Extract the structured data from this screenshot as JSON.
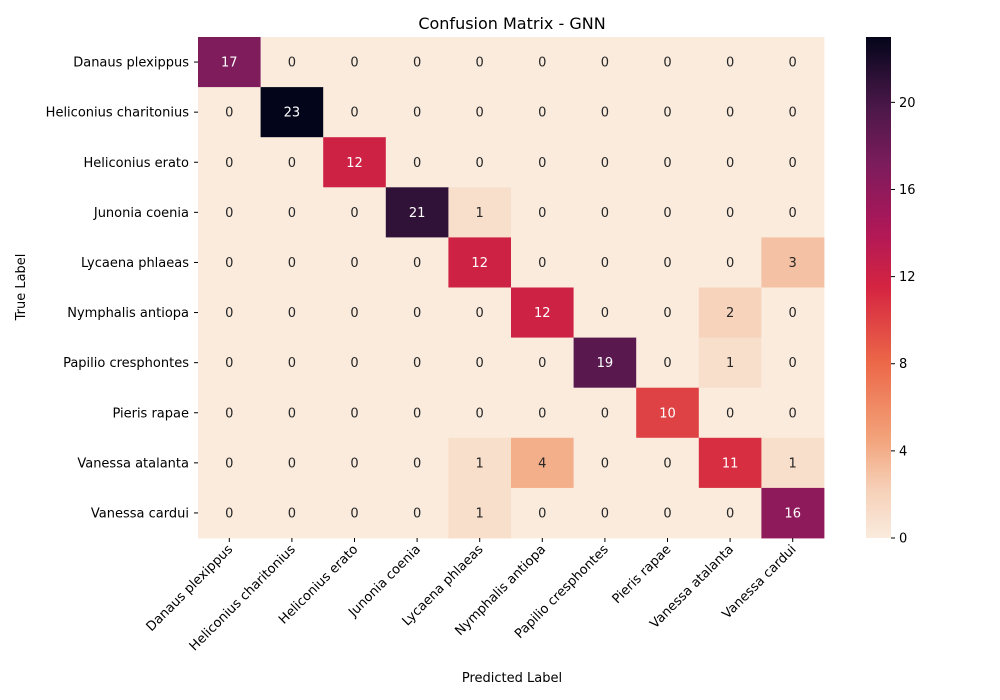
{
  "chart_data": {
    "type": "heatmap",
    "title": "Confusion Matrix - GNN",
    "xlabel": "Predicted Label",
    "ylabel": "True Label",
    "x_categories": [
      "Danaus plexippus",
      "Heliconius charitonius",
      "Heliconius erato",
      "Junonia coenia",
      "Lycaena phlaeas",
      "Nymphalis antiopa",
      "Papilio cresphontes",
      "Pieris rapae",
      "Vanessa atalanta",
      "Vanessa cardui"
    ],
    "y_categories": [
      "Danaus plexippus",
      "Heliconius charitonius",
      "Heliconius erato",
      "Junonia coenia",
      "Lycaena phlaeas",
      "Nymphalis antiopa",
      "Papilio cresphontes",
      "Pieris rapae",
      "Vanessa atalanta",
      "Vanessa cardui"
    ],
    "values": [
      [
        17,
        0,
        0,
        0,
        0,
        0,
        0,
        0,
        0,
        0
      ],
      [
        0,
        23,
        0,
        0,
        0,
        0,
        0,
        0,
        0,
        0
      ],
      [
        0,
        0,
        12,
        0,
        0,
        0,
        0,
        0,
        0,
        0
      ],
      [
        0,
        0,
        0,
        21,
        1,
        0,
        0,
        0,
        0,
        0
      ],
      [
        0,
        0,
        0,
        0,
        12,
        0,
        0,
        0,
        0,
        3
      ],
      [
        0,
        0,
        0,
        0,
        0,
        12,
        0,
        0,
        2,
        0
      ],
      [
        0,
        0,
        0,
        0,
        0,
        0,
        19,
        0,
        1,
        0
      ],
      [
        0,
        0,
        0,
        0,
        0,
        0,
        0,
        10,
        0,
        0
      ],
      [
        0,
        0,
        0,
        0,
        1,
        4,
        0,
        0,
        11,
        1
      ],
      [
        0,
        0,
        0,
        0,
        1,
        0,
        0,
        0,
        0,
        16
      ]
    ],
    "colorbar": {
      "min": 0,
      "max": 23,
      "ticks": [
        0,
        4,
        8,
        12,
        16,
        20
      ],
      "colormap": "rocket_r"
    },
    "grid": false,
    "legend": "none"
  }
}
